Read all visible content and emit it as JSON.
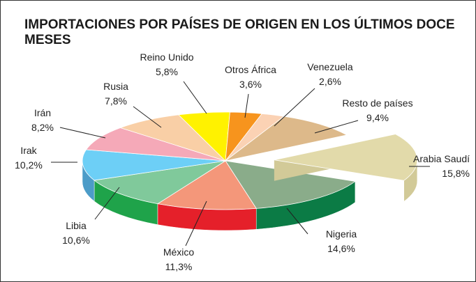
{
  "chart_data": {
    "type": "pie",
    "title": "IMPORTACIONES POR PAÍSES DE ORIGEN EN LOS ÚLTIMOS DOCE MESES",
    "categories": [
      "Arabia Saudí",
      "Nigeria",
      "México",
      "Libia",
      "Irak",
      "Irán",
      "Rusia",
      "Reino Unido",
      "Otros África",
      "Venezuela",
      "Resto de países"
    ],
    "values": [
      15.8,
      14.6,
      11.3,
      10.6,
      10.2,
      8.2,
      7.8,
      5.8,
      3.6,
      2.6,
      9.4
    ],
    "value_labels": [
      "15,8%",
      "14,6%",
      "11,3%",
      "10,6%",
      "10,2%",
      "8,2%",
      "7,8%",
      "5,8%",
      "3,6%",
      "2,6%",
      "9,4%"
    ],
    "colors": [
      "#e2daaa",
      "#8aac8a",
      "#f4977a",
      "#80c99b",
      "#6dcff6",
      "#f5a9b8",
      "#f9cfa6",
      "#fff200",
      "#f7941d",
      "#fbd2b4",
      "#ddb98a"
    ],
    "side_colors": [
      "#d2ca98",
      "#0b7b45",
      "#e5202a",
      "#1fa34a",
      "#4c9cc8",
      "#d98a9a",
      "#d9ae86",
      "#d9cc00",
      "#c9740f",
      "#d9ae92",
      "#c09a6c"
    ],
    "exploded": [
      "Arabia Saudí"
    ]
  }
}
